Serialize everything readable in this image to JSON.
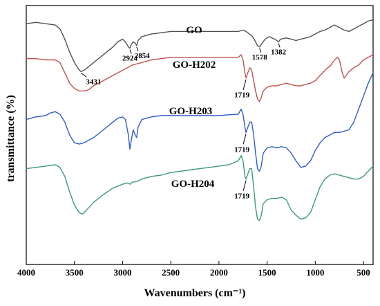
{
  "chart_data": {
    "type": "line",
    "xlabel": "Wavenumbers (cm⁻¹)",
    "ylabel": "transmittance (%)",
    "xlim": [
      4000,
      400
    ],
    "x_reversed": true,
    "x_ticks": [
      4000,
      3500,
      3000,
      2500,
      2000,
      1500,
      1000,
      500
    ],
    "y_ticks_shown": false,
    "grid": false,
    "series": [
      {
        "name": "GO",
        "color": "#505050",
        "points": [
          [
            4000,
            0.93
          ],
          [
            3900,
            0.935
          ],
          [
            3800,
            0.93
          ],
          [
            3700,
            0.925
          ],
          [
            3650,
            0.91
          ],
          [
            3600,
            0.87
          ],
          [
            3550,
            0.82
          ],
          [
            3500,
            0.78
          ],
          [
            3450,
            0.75
          ],
          [
            3431,
            0.745
          ],
          [
            3400,
            0.75
          ],
          [
            3300,
            0.78
          ],
          [
            3200,
            0.81
          ],
          [
            3100,
            0.84
          ],
          [
            3050,
            0.86
          ],
          [
            3000,
            0.87
          ],
          [
            2970,
            0.86
          ],
          [
            2940,
            0.84
          ],
          [
            2924,
            0.835
          ],
          [
            2910,
            0.85
          ],
          [
            2890,
            0.86
          ],
          [
            2870,
            0.855
          ],
          [
            2854,
            0.845
          ],
          [
            2840,
            0.865
          ],
          [
            2800,
            0.88
          ],
          [
            2700,
            0.89
          ],
          [
            2600,
            0.895
          ],
          [
            2500,
            0.9
          ],
          [
            2400,
            0.9
          ],
          [
            2300,
            0.9
          ],
          [
            2200,
            0.9
          ],
          [
            2100,
            0.9
          ],
          [
            2000,
            0.9
          ],
          [
            1900,
            0.9
          ],
          [
            1800,
            0.9
          ],
          [
            1750,
            0.905
          ],
          [
            1720,
            0.9
          ],
          [
            1700,
            0.895
          ],
          [
            1650,
            0.88
          ],
          [
            1620,
            0.86
          ],
          [
            1600,
            0.845
          ],
          [
            1578,
            0.84
          ],
          [
            1560,
            0.85
          ],
          [
            1520,
            0.87
          ],
          [
            1480,
            0.88
          ],
          [
            1450,
            0.875
          ],
          [
            1420,
            0.87
          ],
          [
            1400,
            0.865
          ],
          [
            1382,
            0.86
          ],
          [
            1360,
            0.87
          ],
          [
            1300,
            0.875
          ],
          [
            1250,
            0.87
          ],
          [
            1200,
            0.865
          ],
          [
            1150,
            0.87
          ],
          [
            1100,
            0.875
          ],
          [
            1050,
            0.88
          ],
          [
            1000,
            0.89
          ],
          [
            950,
            0.9
          ],
          [
            900,
            0.905
          ],
          [
            850,
            0.915
          ],
          [
            800,
            0.925
          ],
          [
            750,
            0.915
          ],
          [
            700,
            0.905
          ],
          [
            650,
            0.9
          ],
          [
            600,
            0.91
          ],
          [
            550,
            0.92
          ],
          [
            500,
            0.93
          ],
          [
            450,
            0.94
          ],
          [
            400,
            0.945
          ]
        ]
      },
      {
        "name": "GO-H202",
        "color": "#c0504d",
        "points": [
          [
            4000,
            0.795
          ],
          [
            3900,
            0.795
          ],
          [
            3800,
            0.79
          ],
          [
            3700,
            0.79
          ],
          [
            3650,
            0.78
          ],
          [
            3600,
            0.74
          ],
          [
            3550,
            0.7
          ],
          [
            3500,
            0.68
          ],
          [
            3450,
            0.67
          ],
          [
            3400,
            0.67
          ],
          [
            3350,
            0.675
          ],
          [
            3300,
            0.69
          ],
          [
            3200,
            0.71
          ],
          [
            3100,
            0.73
          ],
          [
            3000,
            0.75
          ],
          [
            2950,
            0.76
          ],
          [
            2900,
            0.77
          ],
          [
            2800,
            0.78
          ],
          [
            2700,
            0.79
          ],
          [
            2600,
            0.795
          ],
          [
            2500,
            0.8
          ],
          [
            2400,
            0.8
          ],
          [
            2300,
            0.8
          ],
          [
            2200,
            0.8
          ],
          [
            2100,
            0.8
          ],
          [
            2000,
            0.8
          ],
          [
            1900,
            0.8
          ],
          [
            1800,
            0.8
          ],
          [
            1770,
            0.81
          ],
          [
            1750,
            0.79
          ],
          [
            1730,
            0.74
          ],
          [
            1719,
            0.72
          ],
          [
            1700,
            0.74
          ],
          [
            1680,
            0.76
          ],
          [
            1660,
            0.75
          ],
          [
            1640,
            0.71
          ],
          [
            1620,
            0.67
          ],
          [
            1600,
            0.64
          ],
          [
            1580,
            0.63
          ],
          [
            1560,
            0.645
          ],
          [
            1540,
            0.67
          ],
          [
            1500,
            0.685
          ],
          [
            1450,
            0.69
          ],
          [
            1400,
            0.69
          ],
          [
            1350,
            0.695
          ],
          [
            1300,
            0.7
          ],
          [
            1250,
            0.695
          ],
          [
            1200,
            0.69
          ],
          [
            1150,
            0.69
          ],
          [
            1100,
            0.695
          ],
          [
            1050,
            0.7
          ],
          [
            1000,
            0.71
          ],
          [
            950,
            0.73
          ],
          [
            900,
            0.75
          ],
          [
            870,
            0.76
          ],
          [
            850,
            0.765
          ],
          [
            800,
            0.79
          ],
          [
            770,
            0.8
          ],
          [
            750,
            0.79
          ],
          [
            720,
            0.74
          ],
          [
            700,
            0.72
          ],
          [
            680,
            0.73
          ],
          [
            650,
            0.745
          ],
          [
            600,
            0.76
          ],
          [
            550,
            0.77
          ],
          [
            500,
            0.79
          ],
          [
            450,
            0.8
          ],
          [
            400,
            0.81
          ]
        ]
      },
      {
        "name": "GO-H203",
        "color": "#2e5ccc",
        "points": [
          [
            4000,
            0.56
          ],
          [
            3900,
            0.57
          ],
          [
            3800,
            0.575
          ],
          [
            3750,
            0.585
          ],
          [
            3700,
            0.59
          ],
          [
            3650,
            0.58
          ],
          [
            3600,
            0.55
          ],
          [
            3550,
            0.5
          ],
          [
            3500,
            0.47
          ],
          [
            3450,
            0.465
          ],
          [
            3400,
            0.47
          ],
          [
            3350,
            0.48
          ],
          [
            3300,
            0.49
          ],
          [
            3200,
            0.52
          ],
          [
            3100,
            0.55
          ],
          [
            3050,
            0.565
          ],
          [
            3000,
            0.57
          ],
          [
            2970,
            0.56
          ],
          [
            2940,
            0.5
          ],
          [
            2924,
            0.445
          ],
          [
            2910,
            0.48
          ],
          [
            2890,
            0.52
          ],
          [
            2870,
            0.5
          ],
          [
            2854,
            0.49
          ],
          [
            2840,
            0.53
          ],
          [
            2800,
            0.56
          ],
          [
            2700,
            0.57
          ],
          [
            2600,
            0.575
          ],
          [
            2500,
            0.575
          ],
          [
            2400,
            0.575
          ],
          [
            2300,
            0.575
          ],
          [
            2200,
            0.575
          ],
          [
            2100,
            0.575
          ],
          [
            2000,
            0.575
          ],
          [
            1900,
            0.578
          ],
          [
            1800,
            0.58
          ],
          [
            1770,
            0.6
          ],
          [
            1750,
            0.58
          ],
          [
            1730,
            0.53
          ],
          [
            1719,
            0.51
          ],
          [
            1700,
            0.53
          ],
          [
            1680,
            0.55
          ],
          [
            1660,
            0.55
          ],
          [
            1640,
            0.5
          ],
          [
            1620,
            0.43
          ],
          [
            1600,
            0.37
          ],
          [
            1580,
            0.36
          ],
          [
            1560,
            0.38
          ],
          [
            1540,
            0.43
          ],
          [
            1500,
            0.45
          ],
          [
            1450,
            0.455
          ],
          [
            1400,
            0.45
          ],
          [
            1350,
            0.455
          ],
          [
            1300,
            0.45
          ],
          [
            1250,
            0.43
          ],
          [
            1200,
            0.4
          ],
          [
            1150,
            0.375
          ],
          [
            1100,
            0.38
          ],
          [
            1050,
            0.4
          ],
          [
            1000,
            0.44
          ],
          [
            950,
            0.47
          ],
          [
            900,
            0.49
          ],
          [
            850,
            0.5
          ],
          [
            800,
            0.51
          ],
          [
            750,
            0.51
          ],
          [
            700,
            0.515
          ],
          [
            650,
            0.52
          ],
          [
            600,
            0.55
          ],
          [
            550,
            0.6
          ],
          [
            500,
            0.65
          ],
          [
            450,
            0.7
          ],
          [
            400,
            0.74
          ]
        ]
      },
      {
        "name": "GO-H204",
        "color": "#3a9a76",
        "points": [
          [
            4000,
            0.37
          ],
          [
            3900,
            0.375
          ],
          [
            3800,
            0.38
          ],
          [
            3700,
            0.385
          ],
          [
            3650,
            0.375
          ],
          [
            3600,
            0.34
          ],
          [
            3550,
            0.28
          ],
          [
            3500,
            0.23
          ],
          [
            3450,
            0.2
          ],
          [
            3420,
            0.195
          ],
          [
            3400,
            0.2
          ],
          [
            3350,
            0.22
          ],
          [
            3300,
            0.24
          ],
          [
            3200,
            0.27
          ],
          [
            3100,
            0.295
          ],
          [
            3000,
            0.31
          ],
          [
            2950,
            0.315
          ],
          [
            2924,
            0.31
          ],
          [
            2900,
            0.318
          ],
          [
            2854,
            0.32
          ],
          [
            2800,
            0.33
          ],
          [
            2700,
            0.34
          ],
          [
            2600,
            0.345
          ],
          [
            2500,
            0.355
          ],
          [
            2400,
            0.36
          ],
          [
            2300,
            0.365
          ],
          [
            2200,
            0.37
          ],
          [
            2100,
            0.375
          ],
          [
            2000,
            0.38
          ],
          [
            1900,
            0.385
          ],
          [
            1800,
            0.4
          ],
          [
            1770,
            0.42
          ],
          [
            1750,
            0.4
          ],
          [
            1730,
            0.34
          ],
          [
            1719,
            0.33
          ],
          [
            1700,
            0.35
          ],
          [
            1680,
            0.37
          ],
          [
            1660,
            0.37
          ],
          [
            1640,
            0.3
          ],
          [
            1620,
            0.22
          ],
          [
            1600,
            0.175
          ],
          [
            1580,
            0.17
          ],
          [
            1560,
            0.19
          ],
          [
            1540,
            0.235
          ],
          [
            1500,
            0.25
          ],
          [
            1450,
            0.255
          ],
          [
            1400,
            0.255
          ],
          [
            1350,
            0.26
          ],
          [
            1300,
            0.25
          ],
          [
            1250,
            0.21
          ],
          [
            1200,
            0.19
          ],
          [
            1150,
            0.175
          ],
          [
            1100,
            0.18
          ],
          [
            1050,
            0.2
          ],
          [
            1000,
            0.25
          ],
          [
            950,
            0.3
          ],
          [
            900,
            0.33
          ],
          [
            850,
            0.345
          ],
          [
            800,
            0.35
          ],
          [
            750,
            0.345
          ],
          [
            700,
            0.34
          ],
          [
            650,
            0.335
          ],
          [
            600,
            0.33
          ],
          [
            550,
            0.33
          ],
          [
            500,
            0.34
          ],
          [
            450,
            0.36
          ],
          [
            400,
            0.38
          ]
        ]
      }
    ],
    "annotations": [
      {
        "text": "3431",
        "x": 3431,
        "series": "GO"
      },
      {
        "text": "2924",
        "x": 2924,
        "series": "GO"
      },
      {
        "text": "2854",
        "x": 2854,
        "series": "GO"
      },
      {
        "text": "1578",
        "x": 1578,
        "series": "GO"
      },
      {
        "text": "1382",
        "x": 1382,
        "series": "GO"
      },
      {
        "text": "1719",
        "x": 1719,
        "series": "GO-H202"
      },
      {
        "text": "1719",
        "x": 1719,
        "series": "GO-H203"
      },
      {
        "text": "1719",
        "x": 1719,
        "series": "GO-H204"
      }
    ]
  }
}
